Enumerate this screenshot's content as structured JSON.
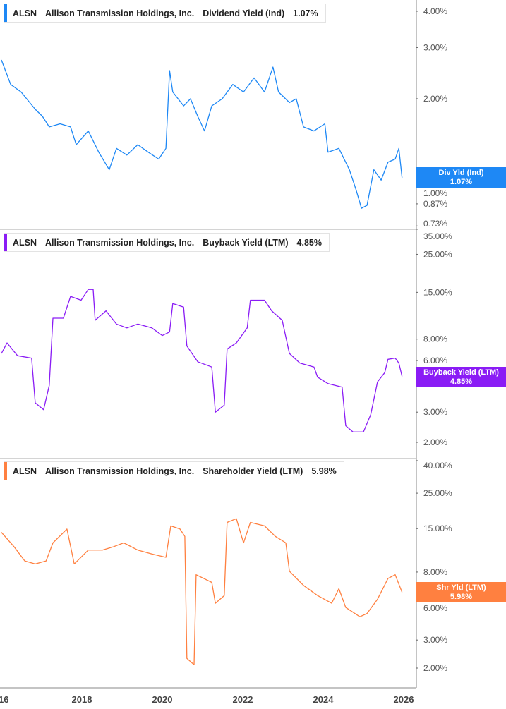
{
  "ticker": "ALSN",
  "company": "Allison Transmission Holdings, Inc.",
  "chart_data": [
    {
      "type": "line",
      "title": "Dividend Yield (Ind)",
      "current_value": "1.07%",
      "badge_label": "Div Yld (Ind)",
      "color": "#1e88f5",
      "y_scale": "log",
      "y_ticks": [
        "4.00%",
        "3.00%",
        "2.00%",
        "1.00%",
        "0.87%",
        "0.73%"
      ],
      "y_tick_values": [
        4,
        3,
        2,
        1,
        0.87,
        0.73
      ],
      "points": [
        [
          2016.0,
          2.72
        ],
        [
          2016.23,
          2.24
        ],
        [
          2016.49,
          2.11
        ],
        [
          2016.84,
          1.84
        ],
        [
          2017.02,
          1.74
        ],
        [
          2017.19,
          1.6
        ],
        [
          2017.46,
          1.64
        ],
        [
          2017.72,
          1.6
        ],
        [
          2017.86,
          1.39
        ],
        [
          2018.16,
          1.55
        ],
        [
          2018.42,
          1.31
        ],
        [
          2018.68,
          1.14
        ],
        [
          2018.86,
          1.35
        ],
        [
          2019.12,
          1.28
        ],
        [
          2019.39,
          1.39
        ],
        [
          2019.65,
          1.31
        ],
        [
          2019.91,
          1.24
        ],
        [
          2020.09,
          1.35
        ],
        [
          2020.18,
          2.5
        ],
        [
          2020.26,
          2.11
        ],
        [
          2020.53,
          1.89
        ],
        [
          2020.7,
          2.0
        ],
        [
          2020.88,
          1.74
        ],
        [
          2021.05,
          1.55
        ],
        [
          2021.23,
          1.89
        ],
        [
          2021.49,
          2.0
        ],
        [
          2021.75,
          2.24
        ],
        [
          2022.02,
          2.11
        ],
        [
          2022.28,
          2.36
        ],
        [
          2022.54,
          2.11
        ],
        [
          2022.75,
          2.57
        ],
        [
          2022.89,
          2.11
        ],
        [
          2023.16,
          1.94
        ],
        [
          2023.33,
          2.0
        ],
        [
          2023.51,
          1.6
        ],
        [
          2023.77,
          1.55
        ],
        [
          2024.04,
          1.64
        ],
        [
          2024.12,
          1.31
        ],
        [
          2024.39,
          1.35
        ],
        [
          2024.65,
          1.14
        ],
        [
          2024.82,
          0.97
        ],
        [
          2024.95,
          0.84
        ],
        [
          2025.09,
          0.86
        ],
        [
          2025.26,
          1.14
        ],
        [
          2025.44,
          1.05
        ],
        [
          2025.61,
          1.21
        ],
        [
          2025.79,
          1.24
        ],
        [
          2025.88,
          1.35
        ],
        [
          2025.96,
          1.07
        ]
      ]
    },
    {
      "type": "line",
      "title": "Buyback Yield (LTM)",
      "current_value": "4.85%",
      "badge_label": "Buyback Yield (LTM)",
      "color": "#8a1cf5",
      "y_scale": "log",
      "y_ticks": [
        "35.00%",
        "25.00%",
        "15.00%",
        "8.00%",
        "6.00%",
        "3.00%",
        "2.00%"
      ],
      "y_tick_values": [
        35,
        25,
        15,
        8,
        6,
        3,
        2
      ],
      "points": [
        [
          2016.0,
          6.6
        ],
        [
          2016.14,
          7.6
        ],
        [
          2016.4,
          6.4
        ],
        [
          2016.75,
          6.2
        ],
        [
          2016.84,
          3.4
        ],
        [
          2017.05,
          3.1
        ],
        [
          2017.19,
          4.3
        ],
        [
          2017.28,
          10.6
        ],
        [
          2017.54,
          10.6
        ],
        [
          2017.72,
          14.2
        ],
        [
          2017.98,
          13.5
        ],
        [
          2018.16,
          15.6
        ],
        [
          2018.28,
          15.6
        ],
        [
          2018.33,
          10.3
        ],
        [
          2018.6,
          11.7
        ],
        [
          2018.86,
          9.8
        ],
        [
          2019.12,
          9.3
        ],
        [
          2019.39,
          9.8
        ],
        [
          2019.74,
          9.3
        ],
        [
          2020.0,
          8.4
        ],
        [
          2020.18,
          8.8
        ],
        [
          2020.26,
          12.9
        ],
        [
          2020.53,
          12.3
        ],
        [
          2020.61,
          7.3
        ],
        [
          2020.88,
          5.9
        ],
        [
          2021.23,
          5.5
        ],
        [
          2021.32,
          3.0
        ],
        [
          2021.54,
          3.3
        ],
        [
          2021.61,
          7.0
        ],
        [
          2021.84,
          7.6
        ],
        [
          2022.11,
          9.3
        ],
        [
          2022.19,
          13.5
        ],
        [
          2022.54,
          13.5
        ],
        [
          2022.72,
          11.7
        ],
        [
          2022.98,
          10.3
        ],
        [
          2023.16,
          6.6
        ],
        [
          2023.42,
          5.8
        ],
        [
          2023.77,
          5.5
        ],
        [
          2023.86,
          4.8
        ],
        [
          2024.12,
          4.4
        ],
        [
          2024.47,
          4.2
        ],
        [
          2024.56,
          2.5
        ],
        [
          2024.74,
          2.3
        ],
        [
          2025.0,
          2.3
        ],
        [
          2025.18,
          2.9
        ],
        [
          2025.35,
          4.5
        ],
        [
          2025.53,
          5.1
        ],
        [
          2025.61,
          6.1
        ],
        [
          2025.79,
          6.2
        ],
        [
          2025.88,
          5.8
        ],
        [
          2025.96,
          4.85
        ]
      ]
    },
    {
      "type": "line",
      "title": "Shareholder Yield (LTM)",
      "current_value": "5.98%",
      "badge_label": "Shr Yld (LTM)",
      "color": "#ff8040",
      "y_scale": "log",
      "y_ticks": [
        "40.00%",
        "25.00%",
        "15.00%",
        "8.00%",
        "6.00%",
        "3.00%",
        "2.00%"
      ],
      "y_tick_values": [
        40,
        25,
        15,
        8,
        6,
        3,
        2
      ],
      "points": [
        [
          2016.0,
          14.2
        ],
        [
          2016.32,
          11.5
        ],
        [
          2016.58,
          9.4
        ],
        [
          2016.84,
          9.0
        ],
        [
          2017.11,
          9.4
        ],
        [
          2017.28,
          12.2
        ],
        [
          2017.63,
          14.9
        ],
        [
          2017.81,
          9.0
        ],
        [
          2018.16,
          11.0
        ],
        [
          2018.51,
          11.0
        ],
        [
          2018.77,
          11.5
        ],
        [
          2019.04,
          12.2
        ],
        [
          2019.39,
          11.0
        ],
        [
          2019.74,
          10.4
        ],
        [
          2020.09,
          9.9
        ],
        [
          2020.21,
          15.6
        ],
        [
          2020.44,
          14.9
        ],
        [
          2020.56,
          13.4
        ],
        [
          2020.61,
          2.3
        ],
        [
          2020.79,
          2.1
        ],
        [
          2020.84,
          7.7
        ],
        [
          2021.23,
          6.9
        ],
        [
          2021.32,
          5.1
        ],
        [
          2021.54,
          5.7
        ],
        [
          2021.61,
          16.4
        ],
        [
          2021.84,
          17.3
        ],
        [
          2022.02,
          12.2
        ],
        [
          2022.19,
          16.4
        ],
        [
          2022.54,
          15.6
        ],
        [
          2022.81,
          13.4
        ],
        [
          2023.07,
          12.2
        ],
        [
          2023.16,
          8.1
        ],
        [
          2023.51,
          6.6
        ],
        [
          2023.86,
          5.7
        ],
        [
          2024.21,
          5.1
        ],
        [
          2024.39,
          6.3
        ],
        [
          2024.56,
          4.8
        ],
        [
          2024.91,
          4.2
        ],
        [
          2025.09,
          4.4
        ],
        [
          2025.35,
          5.4
        ],
        [
          2025.61,
          7.3
        ],
        [
          2025.79,
          7.7
        ],
        [
          2025.96,
          5.98
        ]
      ]
    }
  ],
  "x_axis": {
    "ticks": [
      "16",
      "2018",
      "2020",
      "2022",
      "2024",
      "2026"
    ],
    "tick_values": [
      2016,
      2018,
      2020,
      2022,
      2024,
      2026
    ]
  }
}
